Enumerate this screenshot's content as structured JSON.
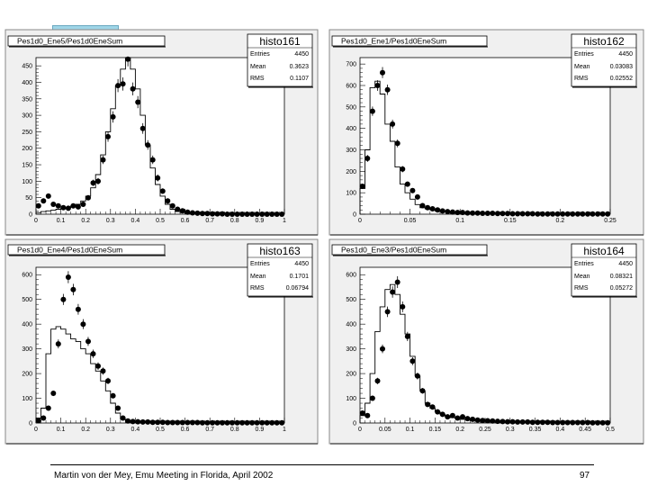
{
  "footer": {
    "text": "Martin von der Mey, Emu Meeting in Florida, April 2002",
    "page_number": "97"
  },
  "chart_data": [
    {
      "type": "histogram",
      "title": "Pes1d0_Ene5/Pes1d0EneSum",
      "stats": {
        "name": "histo161",
        "entries_label": "Entries",
        "entries": "4450",
        "mean_label": "Mean",
        "mean": "0.3623",
        "rms_label": "RMS",
        "rms": "0.1107"
      },
      "xlim": [
        0,
        1
      ],
      "ylim": [
        0,
        475
      ],
      "xticks": [
        0,
        0.1,
        0.2,
        0.3,
        0.4,
        0.5,
        0.6,
        0.7,
        0.8,
        0.9,
        1
      ],
      "xtick_labels": [
        "0",
        "0.1",
        "0.2",
        "0.3",
        "0.4",
        "0.5",
        "0.6",
        "0.7",
        "0.8",
        "0.9",
        "1"
      ],
      "yticks": [
        0,
        50,
        100,
        150,
        200,
        250,
        300,
        350,
        400,
        450
      ],
      "ytick_labels": [
        "0",
        "50",
        "100",
        "150",
        "200",
        "250",
        "300",
        "350",
        "400",
        "450"
      ],
      "hist_bins": [
        0,
        0.02,
        0.04,
        0.06,
        0.08,
        0.1,
        0.12,
        0.14,
        0.16,
        0.18,
        0.2,
        0.22,
        0.24,
        0.26,
        0.28,
        0.3,
        0.32,
        0.34,
        0.36,
        0.38,
        0.4,
        0.42,
        0.44,
        0.46,
        0.48,
        0.5,
        0.52,
        0.54,
        0.56,
        0.58,
        0.6,
        0.62,
        0.64,
        0.66,
        0.68,
        0.7,
        0.72,
        0.74,
        0.76,
        0.78,
        0.8,
        0.82,
        0.84,
        0.86,
        0.88,
        0.9,
        0.92,
        0.94,
        0.96,
        0.98,
        1
      ],
      "hist_values": [
        5,
        8,
        10,
        12,
        15,
        18,
        20,
        25,
        30,
        40,
        55,
        80,
        120,
        180,
        250,
        320,
        390,
        440,
        480,
        440,
        380,
        300,
        210,
        140,
        90,
        55,
        30,
        15,
        8,
        5,
        3,
        2,
        1,
        1,
        0,
        0,
        0,
        0,
        0,
        0,
        0,
        0,
        0,
        0,
        0,
        0,
        0,
        0,
        0,
        0
      ],
      "points_x": [
        0.01,
        0.03,
        0.05,
        0.07,
        0.09,
        0.11,
        0.13,
        0.15,
        0.17,
        0.19,
        0.21,
        0.23,
        0.25,
        0.27,
        0.29,
        0.31,
        0.33,
        0.35,
        0.37,
        0.39,
        0.41,
        0.43,
        0.45,
        0.47,
        0.49,
        0.51,
        0.53,
        0.55,
        0.57,
        0.59,
        0.61,
        0.63,
        0.65,
        0.67,
        0.69,
        0.71,
        0.73,
        0.75,
        0.77,
        0.79,
        0.81,
        0.83,
        0.85,
        0.87,
        0.89,
        0.91,
        0.93,
        0.95,
        0.97,
        0.99
      ],
      "points_y": [
        25,
        40,
        55,
        30,
        25,
        20,
        18,
        25,
        22,
        30,
        50,
        95,
        100,
        165,
        235,
        295,
        390,
        395,
        470,
        380,
        340,
        260,
        210,
        165,
        110,
        70,
        40,
        25,
        15,
        10,
        6,
        4,
        3,
        2,
        2,
        1,
        1,
        1,
        0,
        0,
        0,
        0,
        0,
        0,
        0,
        0,
        0,
        0,
        0,
        0
      ]
    },
    {
      "type": "histogram",
      "title": "Pes1d0_Ene1/Pes1d0EneSum",
      "stats": {
        "name": "histo162",
        "entries_label": "Entries",
        "entries": "4450",
        "mean_label": "Mean",
        "mean": "0.03083",
        "rms_label": "RMS",
        "rms": "0.02552"
      },
      "xlim": [
        0,
        0.25
      ],
      "ylim": [
        0,
        730
      ],
      "xticks": [
        0,
        0.05,
        0.1,
        0.15,
        0.2,
        0.25
      ],
      "xtick_labels": [
        "0",
        "0.05",
        "0.1",
        "0.15",
        "0.2",
        "0.25"
      ],
      "yticks": [
        0,
        100,
        200,
        300,
        400,
        500,
        600,
        700
      ],
      "ytick_labels": [
        "0",
        "100",
        "200",
        "300",
        "400",
        "500",
        "600",
        "700"
      ],
      "hist_bins": [
        0,
        0.005,
        0.01,
        0.015,
        0.02,
        0.025,
        0.03,
        0.035,
        0.04,
        0.045,
        0.05,
        0.055,
        0.06,
        0.065,
        0.07,
        0.075,
        0.08,
        0.085,
        0.09,
        0.095,
        0.1,
        0.105,
        0.11,
        0.115,
        0.12,
        0.125,
        0.13,
        0.135,
        0.14,
        0.145,
        0.15,
        0.155,
        0.16,
        0.165,
        0.17,
        0.175,
        0.18,
        0.185,
        0.19,
        0.195,
        0.2,
        0.205,
        0.21,
        0.215,
        0.22,
        0.225,
        0.23,
        0.235,
        0.24,
        0.245,
        0.25
      ],
      "hist_values": [
        120,
        300,
        590,
        620,
        560,
        420,
        340,
        220,
        140,
        100,
        70,
        45,
        30,
        25,
        20,
        15,
        12,
        10,
        8,
        7,
        6,
        5,
        5,
        4,
        4,
        3,
        3,
        3,
        2,
        2,
        2,
        2,
        2,
        1,
        1,
        1,
        1,
        1,
        1,
        1,
        1,
        1,
        1,
        1,
        1,
        0,
        0,
        0,
        0,
        0
      ],
      "points_x": [
        0.0025,
        0.0075,
        0.0125,
        0.0175,
        0.0225,
        0.0275,
        0.0325,
        0.0375,
        0.0425,
        0.0475,
        0.0525,
        0.0575,
        0.0625,
        0.0675,
        0.0725,
        0.0775,
        0.0825,
        0.0875,
        0.0925,
        0.0975,
        0.1025,
        0.1075,
        0.1125,
        0.1175,
        0.1225,
        0.1275,
        0.1325,
        0.1375,
        0.1425,
        0.1475,
        0.1525,
        0.1575,
        0.1625,
        0.1675,
        0.1725,
        0.1775,
        0.1825,
        0.1875,
        0.1925,
        0.1975,
        0.2025,
        0.2075,
        0.2125,
        0.2175,
        0.2225,
        0.2275,
        0.2325,
        0.2375,
        0.2425,
        0.2475
      ],
      "points_y": [
        130,
        260,
        480,
        600,
        660,
        580,
        420,
        330,
        210,
        140,
        110,
        80,
        40,
        30,
        25,
        20,
        15,
        12,
        10,
        8,
        8,
        6,
        5,
        5,
        4,
        4,
        4,
        3,
        3,
        3,
        2,
        2,
        2,
        2,
        2,
        1,
        1,
        1,
        1,
        1,
        1,
        1,
        1,
        1,
        1,
        1,
        1,
        1,
        1,
        1
      ]
    },
    {
      "type": "histogram",
      "title": "Pes1d0_Ene4/Pes1d0EneSum",
      "stats": {
        "name": "histo163",
        "entries_label": "Entries",
        "entries": "4450",
        "mean_label": "Mean",
        "mean": "0.1701",
        "rms_label": "RMS",
        "rms": "0.06794"
      },
      "xlim": [
        0,
        1
      ],
      "ylim": [
        0,
        630
      ],
      "xticks": [
        0,
        0.1,
        0.2,
        0.3,
        0.4,
        0.5,
        0.6,
        0.7,
        0.8,
        0.9,
        1
      ],
      "xtick_labels": [
        "0",
        "0.1",
        "0.2",
        "0.3",
        "0.4",
        "0.5",
        "0.6",
        "0.7",
        "0.8",
        "0.9",
        "1"
      ],
      "yticks": [
        0,
        100,
        200,
        300,
        400,
        500,
        600
      ],
      "ytick_labels": [
        "0",
        "100",
        "200",
        "300",
        "400",
        "500",
        "600"
      ],
      "hist_bins": [
        0,
        0.02,
        0.04,
        0.06,
        0.08,
        0.1,
        0.12,
        0.14,
        0.16,
        0.18,
        0.2,
        0.22,
        0.24,
        0.26,
        0.28,
        0.3,
        0.32,
        0.34,
        0.36,
        0.38,
        0.4,
        0.42,
        0.44,
        0.46,
        0.48,
        0.5,
        0.52,
        0.54,
        0.56,
        0.58,
        0.6,
        0.62,
        0.64,
        0.66,
        0.68,
        0.7,
        0.72,
        0.74,
        0.76,
        0.78,
        0.8,
        0.82,
        0.84,
        0.86,
        0.88,
        0.9,
        0.92,
        0.94,
        0.96,
        0.98,
        1
      ],
      "hist_values": [
        20,
        60,
        280,
        380,
        390,
        380,
        360,
        340,
        330,
        300,
        280,
        240,
        210,
        170,
        130,
        80,
        40,
        15,
        8,
        6,
        5,
        4,
        4,
        3,
        3,
        3,
        2,
        2,
        2,
        2,
        2,
        2,
        1,
        1,
        1,
        1,
        1,
        1,
        1,
        1,
        1,
        1,
        1,
        1,
        1,
        1,
        1,
        1,
        1,
        1
      ],
      "points_x": [
        0.01,
        0.03,
        0.05,
        0.07,
        0.09,
        0.11,
        0.13,
        0.15,
        0.17,
        0.19,
        0.21,
        0.23,
        0.25,
        0.27,
        0.29,
        0.31,
        0.33,
        0.35,
        0.37,
        0.39,
        0.41,
        0.43,
        0.45,
        0.47,
        0.49,
        0.51,
        0.53,
        0.55,
        0.57,
        0.59,
        0.61,
        0.63,
        0.65,
        0.67,
        0.69,
        0.71,
        0.73,
        0.75,
        0.77,
        0.79,
        0.81,
        0.83,
        0.85,
        0.87,
        0.89,
        0.91,
        0.93,
        0.95,
        0.97,
        0.99
      ],
      "points_y": [
        10,
        20,
        60,
        120,
        320,
        500,
        590,
        540,
        460,
        400,
        330,
        280,
        230,
        210,
        170,
        110,
        60,
        20,
        8,
        6,
        5,
        4,
        4,
        3,
        3,
        3,
        2,
        2,
        2,
        2,
        2,
        2,
        2,
        1,
        1,
        1,
        1,
        1,
        1,
        1,
        1,
        1,
        1,
        1,
        1,
        1,
        1,
        1,
        1,
        1
      ]
    },
    {
      "type": "histogram",
      "title": "Pes1d0_Ene3/Pes1d0EneSum",
      "stats": {
        "name": "histo164",
        "entries_label": "Entries",
        "entries": "4450",
        "mean_label": "Mean",
        "mean": "0.08321",
        "rms_label": "RMS",
        "rms": "0.05272"
      },
      "xlim": [
        0,
        0.5
      ],
      "ylim": [
        0,
        630
      ],
      "xticks": [
        0,
        0.05,
        0.1,
        0.15,
        0.2,
        0.25,
        0.3,
        0.35,
        0.4,
        0.45,
        0.5
      ],
      "xtick_labels": [
        "0",
        "0.05",
        "0.1",
        "0.15",
        "0.2",
        "0.25",
        "0.3",
        "0.35",
        "0.4",
        "0.45",
        "0.5"
      ],
      "yticks": [
        0,
        100,
        200,
        300,
        400,
        500,
        600
      ],
      "ytick_labels": [
        "0",
        "100",
        "200",
        "300",
        "400",
        "500",
        "600"
      ],
      "hist_bins": [
        0,
        0.01,
        0.02,
        0.03,
        0.04,
        0.05,
        0.06,
        0.07,
        0.08,
        0.09,
        0.1,
        0.11,
        0.12,
        0.13,
        0.14,
        0.15,
        0.16,
        0.17,
        0.18,
        0.19,
        0.2,
        0.21,
        0.22,
        0.23,
        0.24,
        0.25,
        0.26,
        0.27,
        0.28,
        0.29,
        0.3,
        0.31,
        0.32,
        0.33,
        0.34,
        0.35,
        0.36,
        0.37,
        0.38,
        0.39,
        0.4,
        0.41,
        0.42,
        0.43,
        0.44,
        0.45,
        0.46,
        0.47,
        0.48,
        0.49,
        0.5
      ],
      "hist_values": [
        30,
        80,
        200,
        370,
        470,
        540,
        560,
        520,
        440,
        360,
        270,
        190,
        130,
        80,
        60,
        45,
        35,
        28,
        22,
        18,
        15,
        12,
        10,
        9,
        8,
        7,
        6,
        5,
        5,
        4,
        4,
        3,
        3,
        3,
        2,
        2,
        2,
        2,
        2,
        2,
        1,
        1,
        1,
        1,
        1,
        1,
        1,
        1,
        1,
        1
      ],
      "points_x": [
        0.005,
        0.015,
        0.025,
        0.035,
        0.045,
        0.055,
        0.065,
        0.075,
        0.085,
        0.095,
        0.105,
        0.115,
        0.125,
        0.135,
        0.145,
        0.155,
        0.165,
        0.175,
        0.185,
        0.195,
        0.205,
        0.215,
        0.225,
        0.235,
        0.245,
        0.255,
        0.265,
        0.275,
        0.285,
        0.295,
        0.305,
        0.315,
        0.325,
        0.335,
        0.345,
        0.355,
        0.365,
        0.375,
        0.385,
        0.395,
        0.405,
        0.415,
        0.425,
        0.435,
        0.445,
        0.455,
        0.465,
        0.475,
        0.485,
        0.495
      ],
      "points_y": [
        40,
        30,
        100,
        170,
        300,
        450,
        530,
        570,
        470,
        350,
        250,
        190,
        130,
        75,
        65,
        45,
        35,
        25,
        30,
        20,
        25,
        18,
        15,
        12,
        10,
        9,
        8,
        7,
        6,
        5,
        5,
        4,
        4,
        4,
        3,
        3,
        3,
        3,
        2,
        2,
        2,
        2,
        2,
        2,
        2,
        2,
        1,
        1,
        1,
        1
      ]
    }
  ]
}
